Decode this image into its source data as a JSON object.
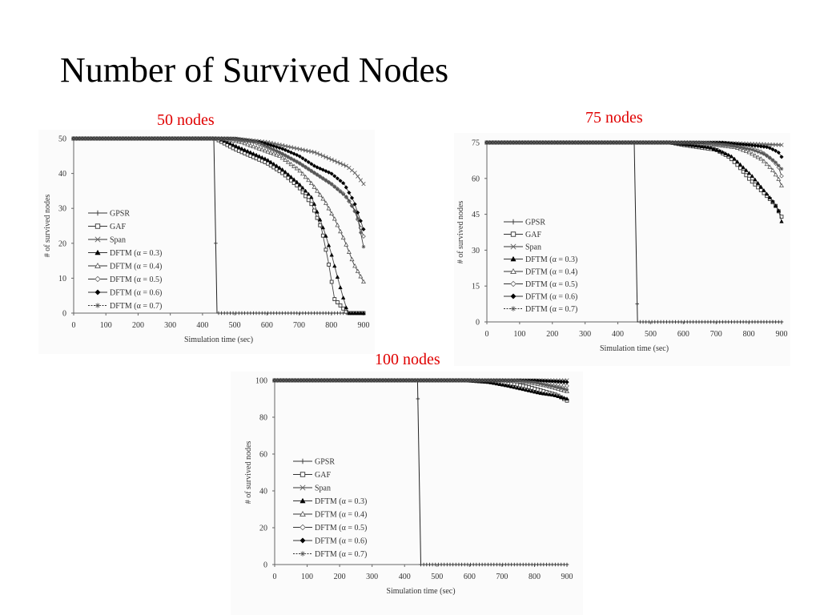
{
  "slide": {
    "title": "Number of Survived Nodes",
    "label_color": "#e00000"
  },
  "chart_data": [
    {
      "type": "line",
      "title": "50 nodes",
      "xlabel": "Simulation time (sec)",
      "ylabel": "# of survived nodes",
      "xlim": [
        0,
        900
      ],
      "ylim": [
        0,
        50
      ],
      "xticks": [
        0,
        100,
        200,
        300,
        400,
        500,
        600,
        700,
        800,
        900
      ],
      "yticks": [
        0,
        10,
        20,
        30,
        40,
        50
      ],
      "grid": false,
      "legend_position": "left",
      "series": [
        {
          "name": "GPSR",
          "marker": "plus",
          "points": [
            [
              0,
              50
            ],
            [
              435,
              50
            ],
            [
              445,
              0
            ],
            [
              900,
              0
            ]
          ]
        },
        {
          "name": "GAF",
          "marker": "square",
          "points": [
            [
              0,
              50
            ],
            [
              440,
              50
            ],
            [
              500,
              47
            ],
            [
              550,
              45
            ],
            [
              600,
              43
            ],
            [
              650,
              40
            ],
            [
              700,
              36
            ],
            [
              740,
              31
            ],
            [
              770,
              24
            ],
            [
              790,
              15
            ],
            [
              810,
              4
            ],
            [
              830,
              2
            ],
            [
              850,
              0
            ],
            [
              900,
              0
            ]
          ]
        },
        {
          "name": "Span",
          "marker": "x",
          "points": [
            [
              0,
              50
            ],
            [
              500,
              50
            ],
            [
              600,
              49
            ],
            [
              700,
              47
            ],
            [
              750,
              46
            ],
            [
              800,
              44
            ],
            [
              850,
              42
            ],
            [
              875,
              40
            ],
            [
              900,
              37
            ]
          ]
        },
        {
          "name": "DFTM (α = 0.3)",
          "marker": "triangle-filled",
          "points": [
            [
              0,
              50
            ],
            [
              450,
              50
            ],
            [
              500,
              48
            ],
            [
              550,
              46
            ],
            [
              600,
              44
            ],
            [
              650,
              41
            ],
            [
              700,
              37
            ],
            [
              740,
              33
            ],
            [
              760,
              28
            ],
            [
              780,
              23
            ],
            [
              800,
              17
            ],
            [
              820,
              10
            ],
            [
              835,
              5
            ],
            [
              845,
              2
            ],
            [
              850,
              0
            ],
            [
              900,
              0
            ]
          ]
        },
        {
          "name": "DFTM (α = 0.4)",
          "marker": "triangle",
          "points": [
            [
              0,
              50
            ],
            [
              460,
              50
            ],
            [
              520,
              49
            ],
            [
              580,
              47
            ],
            [
              640,
              45
            ],
            [
              700,
              41
            ],
            [
              740,
              37
            ],
            [
              780,
              32
            ],
            [
              810,
              27
            ],
            [
              840,
              21
            ],
            [
              870,
              14
            ],
            [
              900,
              9
            ]
          ]
        },
        {
          "name": "DFTM (α = 0.5)",
          "marker": "diamond",
          "points": [
            [
              0,
              50
            ],
            [
              480,
              50
            ],
            [
              560,
              49
            ],
            [
              640,
              46
            ],
            [
              700,
              43
            ],
            [
              750,
              40
            ],
            [
              800,
              37
            ],
            [
              840,
              34
            ],
            [
              870,
              30
            ],
            [
              900,
              22
            ]
          ]
        },
        {
          "name": "DFTM (α = 0.6)",
          "marker": "diamond-filled",
          "points": [
            [
              0,
              50
            ],
            [
              500,
              50
            ],
            [
              580,
              49
            ],
            [
              650,
              47
            ],
            [
              700,
              45
            ],
            [
              750,
              42
            ],
            [
              800,
              40
            ],
            [
              840,
              37
            ],
            [
              870,
              32
            ],
            [
              900,
              24
            ]
          ]
        },
        {
          "name": "DFTM (α = 0.7)",
          "marker": "asterisk",
          "points": [
            [
              0,
              50
            ],
            [
              490,
              50
            ],
            [
              570,
              49
            ],
            [
              640,
              46
            ],
            [
              700,
              43
            ],
            [
              750,
              40
            ],
            [
              800,
              37
            ],
            [
              850,
              33
            ],
            [
              880,
              28
            ],
            [
              900,
              19
            ]
          ]
        }
      ]
    },
    {
      "type": "line",
      "title": "75 nodes",
      "xlabel": "Simulation time (sec)",
      "ylabel": "# of survived nodes",
      "xlim": [
        0,
        900
      ],
      "ylim": [
        0,
        75
      ],
      "xticks": [
        0,
        100,
        200,
        300,
        400,
        500,
        600,
        700,
        800,
        900
      ],
      "yticks": [
        0,
        15,
        30,
        45,
        60,
        75
      ],
      "grid": false,
      "legend_position": "left",
      "series": [
        {
          "name": "GPSR",
          "marker": "plus",
          "points": [
            [
              0,
              75
            ],
            [
              450,
              75
            ],
            [
              460,
              0
            ],
            [
              900,
              0
            ]
          ]
        },
        {
          "name": "GAF",
          "marker": "square",
          "points": [
            [
              0,
              75
            ],
            [
              560,
              75
            ],
            [
              600,
              74
            ],
            [
              650,
              73
            ],
            [
              700,
              72
            ],
            [
              740,
              69
            ],
            [
              770,
              65
            ],
            [
              800,
              60
            ],
            [
              830,
              56
            ],
            [
              860,
              52
            ],
            [
              880,
              49
            ],
            [
              900,
              44
            ]
          ]
        },
        {
          "name": "Span",
          "marker": "x",
          "points": [
            [
              0,
              75
            ],
            [
              700,
              75
            ],
            [
              800,
              74.5
            ],
            [
              900,
              74
            ]
          ]
        },
        {
          "name": "DFTM (α = 0.3)",
          "marker": "triangle-filled",
          "points": [
            [
              0,
              75
            ],
            [
              560,
              75
            ],
            [
              620,
              74
            ],
            [
              680,
              73
            ],
            [
              720,
              71
            ],
            [
              750,
              69
            ],
            [
              780,
              65
            ],
            [
              810,
              61
            ],
            [
              840,
              56
            ],
            [
              870,
              51
            ],
            [
              890,
              47
            ],
            [
              900,
              42
            ]
          ]
        },
        {
          "name": "DFTM (α = 0.4)",
          "marker": "triangle",
          "points": [
            [
              0,
              75
            ],
            [
              620,
              75
            ],
            [
              700,
              74
            ],
            [
              760,
              73
            ],
            [
              800,
              71
            ],
            [
              840,
              68
            ],
            [
              870,
              64
            ],
            [
              890,
              60
            ],
            [
              900,
              57
            ]
          ]
        },
        {
          "name": "DFTM (α = 0.5)",
          "marker": "diamond",
          "points": [
            [
              0,
              75
            ],
            [
              650,
              75
            ],
            [
              730,
              74
            ],
            [
              800,
              73
            ],
            [
              840,
              71
            ],
            [
              870,
              68
            ],
            [
              890,
              65
            ],
            [
              900,
              61
            ]
          ]
        },
        {
          "name": "DFTM (α = 0.6)",
          "marker": "diamond-filled",
          "points": [
            [
              0,
              75
            ],
            [
              720,
              75
            ],
            [
              800,
              74
            ],
            [
              860,
              73
            ],
            [
              890,
              71
            ],
            [
              900,
              69
            ]
          ]
        },
        {
          "name": "DFTM (α = 0.7)",
          "marker": "asterisk",
          "points": [
            [
              0,
              75
            ],
            [
              660,
              75
            ],
            [
              740,
              74
            ],
            [
              810,
              72
            ],
            [
              850,
              70
            ],
            [
              880,
              67
            ],
            [
              900,
              64
            ]
          ]
        }
      ]
    },
    {
      "type": "line",
      "title": "100 nodes",
      "xlabel": "Simulation time (sec)",
      "ylabel": "# of survived nodes",
      "xlim": [
        0,
        900
      ],
      "ylim": [
        0,
        100
      ],
      "xticks": [
        0,
        100,
        200,
        300,
        400,
        500,
        600,
        700,
        800,
        900
      ],
      "yticks": [
        0,
        20,
        40,
        60,
        80,
        100
      ],
      "grid": false,
      "legend_position": "left",
      "series": [
        {
          "name": "GPSR",
          "marker": "plus",
          "points": [
            [
              0,
              100
            ],
            [
              440,
              100
            ],
            [
              450,
              0
            ],
            [
              900,
              0
            ]
          ]
        },
        {
          "name": "GAF",
          "marker": "square",
          "points": [
            [
              0,
              100
            ],
            [
              600,
              100
            ],
            [
              680,
              99
            ],
            [
              740,
              98
            ],
            [
              790,
              96
            ],
            [
              830,
              94
            ],
            [
              870,
              92
            ],
            [
              900,
              89
            ]
          ]
        },
        {
          "name": "Span",
          "marker": "x",
          "points": [
            [
              0,
              100
            ],
            [
              900,
              100
            ]
          ]
        },
        {
          "name": "DFTM (α = 0.3)",
          "marker": "triangle-filled",
          "points": [
            [
              0,
              100
            ],
            [
              580,
              100
            ],
            [
              660,
              99
            ],
            [
              720,
              97
            ],
            [
              770,
              95
            ],
            [
              820,
              93
            ],
            [
              860,
              92
            ],
            [
              900,
              90
            ]
          ]
        },
        {
          "name": "DFTM (α = 0.4)",
          "marker": "triangle",
          "points": [
            [
              0,
              100
            ],
            [
              700,
              100
            ],
            [
              780,
              99
            ],
            [
              840,
              97
            ],
            [
              880,
              95
            ],
            [
              900,
              94
            ]
          ]
        },
        {
          "name": "DFTM (α = 0.5)",
          "marker": "diamond",
          "points": [
            [
              0,
              100
            ],
            [
              760,
              100
            ],
            [
              820,
              99
            ],
            [
              870,
              98
            ],
            [
              900,
              97
            ]
          ]
        },
        {
          "name": "DFTM (α = 0.6)",
          "marker": "diamond-filled",
          "points": [
            [
              0,
              100
            ],
            [
              800,
              100
            ],
            [
              860,
              99.5
            ],
            [
              900,
              99
            ]
          ]
        },
        {
          "name": "DFTM (α = 0.7)",
          "marker": "asterisk",
          "points": [
            [
              0,
              100
            ],
            [
              740,
              100
            ],
            [
              800,
              99
            ],
            [
              850,
              97
            ],
            [
              880,
              96
            ],
            [
              900,
              95
            ]
          ]
        }
      ]
    }
  ]
}
